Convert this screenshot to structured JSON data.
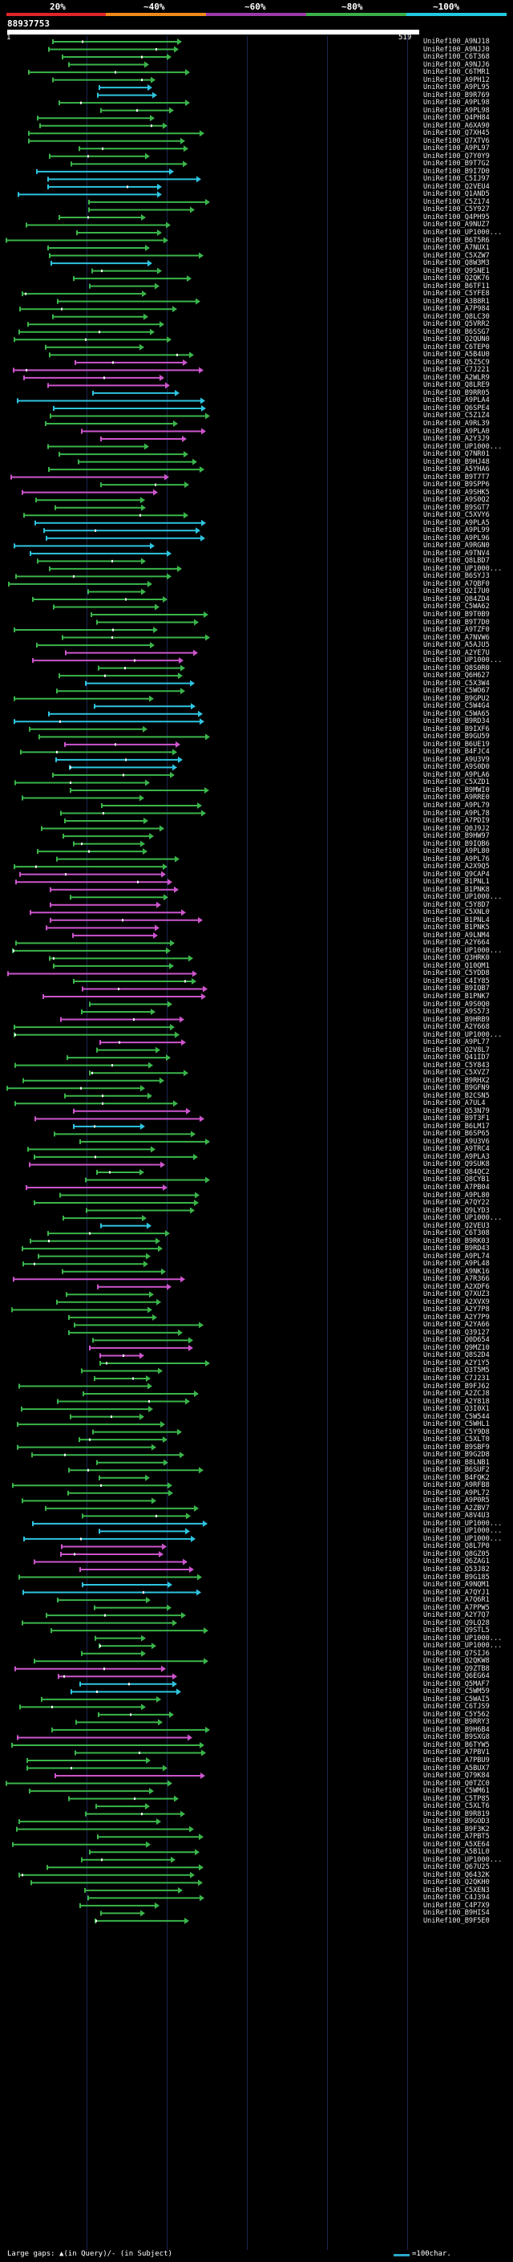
{
  "legend": {
    "labels": [
      "20%",
      "~40%",
      "~60%",
      "~80%",
      "~100%"
    ],
    "colors": [
      "#e0252c",
      "#f08a1a",
      "#9b3aa8",
      "#39b04a",
      "#22c8e0"
    ]
  },
  "query": {
    "id": "88937753",
    "start": "1",
    "end": "519"
  },
  "hits": [
    {
      "label": "UniRef100_A9NJ18",
      "color": "#3ab54a"
    },
    {
      "label": "UniRef100_A9NJJ0",
      "color": "#3ab54a"
    },
    {
      "label": "UniRef100_C6T368",
      "color": "#3ab54a"
    },
    {
      "label": "UniRef100_A9NJJ6",
      "color": "#3ab54a"
    },
    {
      "label": "UniRef100_C6TMR1",
      "color": "#3ab54a"
    },
    {
      "label": "UniRef100_A9PH12",
      "color": "#3ab54a"
    },
    {
      "label": "UniRef100_A9PL95",
      "color": "#2ec4e0"
    },
    {
      "label": "UniRef100_B9R769",
      "color": "#2ec4e0"
    },
    {
      "label": "UniRef100_A9PL98",
      "color": "#3ab54a"
    },
    {
      "label": "UniRef100_A9PL98",
      "color": "#3ab54a"
    },
    {
      "label": "UniRef100_Q4PH84",
      "color": "#3ab54a"
    },
    {
      "label": "UniRef100_A6XA90",
      "color": "#3ab54a"
    },
    {
      "label": "UniRef100_Q7XH45",
      "color": "#3ab54a"
    },
    {
      "label": "UniRef100_Q7XTV6",
      "color": "#3ab54a"
    },
    {
      "label": "UniRef100_A9PL97",
      "color": "#3ab54a"
    },
    {
      "label": "UniRef100_Q7Y0Y9",
      "color": "#3ab54a"
    },
    {
      "label": "UniRef100_B9T7G2",
      "color": "#3ab54a"
    },
    {
      "label": "UniRef100_B9I7D0",
      "color": "#2ec4e0"
    },
    {
      "label": "UniRef100_C5IJ97",
      "color": "#2ec4e0"
    },
    {
      "label": "UniRef100_Q2VEU4",
      "color": "#2ec4e0"
    },
    {
      "label": "UniRef100_Q1AND5",
      "color": "#2ec4e0"
    },
    {
      "label": "UniRef100_C5Z174",
      "color": "#3ab54a"
    },
    {
      "label": "UniRef100_C5Y927",
      "color": "#3ab54a"
    },
    {
      "label": "UniRef100_Q4PH95",
      "color": "#3ab54a"
    },
    {
      "label": "UniRef100_A9NUZ7",
      "color": "#3ab54a"
    },
    {
      "label": "UniRef100_UP1000...",
      "color": "#3ab54a"
    },
    {
      "label": "UniRef100_B6T5R6",
      "color": "#3ab54a"
    },
    {
      "label": "UniRef100_A7NUX1",
      "color": "#3ab54a"
    },
    {
      "label": "UniRef100_C5XZW7",
      "color": "#3ab54a"
    },
    {
      "label": "UniRef100_Q8W3M3",
      "color": "#2ec4e0"
    },
    {
      "label": "UniRef100_Q9SNE1",
      "color": "#3ab54a"
    },
    {
      "label": "UniRef100_Q2QK76",
      "color": "#3ab54a"
    },
    {
      "label": "UniRef100_B6TF11",
      "color": "#3ab54a"
    },
    {
      "label": "UniRef100_C5YFE8",
      "color": "#3ab54a"
    },
    {
      "label": "UniRef100_A3B8R1",
      "color": "#3ab54a"
    },
    {
      "label": "UniRef100_A7P984",
      "color": "#3ab54a"
    },
    {
      "label": "UniRef100_Q8LC30",
      "color": "#3ab54a"
    },
    {
      "label": "UniRef100_Q5VRR2",
      "color": "#3ab54a"
    },
    {
      "label": "UniRef100_B6SSG7",
      "color": "#3ab54a"
    },
    {
      "label": "UniRef100_Q2QUN0",
      "color": "#3ab54a"
    },
    {
      "label": "UniRef100_C6TEP0",
      "color": "#3ab54a"
    },
    {
      "label": "UniRef100_A5B4U0",
      "color": "#3ab54a"
    },
    {
      "label": "UniRef100_Q5Z5C9",
      "color": "#cc55cc"
    },
    {
      "label": "UniRef100_C7J221",
      "color": "#cc55cc"
    },
    {
      "label": "UniRef100_A2WLR9",
      "color": "#cc55cc"
    },
    {
      "label": "UniRef100_Q8LRE9",
      "color": "#cc55cc"
    },
    {
      "label": "UniRef100_B9RR05",
      "color": "#2ec4e0"
    },
    {
      "label": "UniRef100_A9PLA4",
      "color": "#2ec4e0"
    },
    {
      "label": "UniRef100_Q6SPE4",
      "color": "#2ec4e0"
    },
    {
      "label": "UniRef100_C5Z1Z4",
      "color": "#3ab54a"
    },
    {
      "label": "UniRef100_A9RL39",
      "color": "#3ab54a"
    },
    {
      "label": "UniRef100_A9PLA0",
      "color": "#cc55cc"
    },
    {
      "label": "UniRef100_A2Y3J9",
      "color": "#cc55cc"
    },
    {
      "label": "UniRef100_UP1000...",
      "color": "#3ab54a"
    },
    {
      "label": "UniRef100_Q7NR01",
      "color": "#3ab54a"
    },
    {
      "label": "UniRef100_B9HJ48",
      "color": "#3ab54a"
    },
    {
      "label": "UniRef100_A5YHA6",
      "color": "#3ab54a"
    },
    {
      "label": "UniRef100_B9T7T7",
      "color": "#cc55cc"
    },
    {
      "label": "UniRef100_B9SPP6",
      "color": "#3ab54a"
    },
    {
      "label": "UniRef100_A9SHK5",
      "color": "#cc55cc"
    },
    {
      "label": "UniRef100_A9S0Q2",
      "color": "#3ab54a"
    },
    {
      "label": "UniRef100_B9SGT7",
      "color": "#3ab54a"
    },
    {
      "label": "UniRef100_C5XVY6",
      "color": "#3ab54a"
    },
    {
      "label": "UniRef100_A9PLA5",
      "color": "#2ec4e0"
    },
    {
      "label": "UniRef100_A9PL99",
      "color": "#2ec4e0"
    },
    {
      "label": "UniRef100_A9PL96",
      "color": "#2ec4e0"
    },
    {
      "label": "UniRef100_A9RGN0",
      "color": "#2ec4e0"
    },
    {
      "label": "UniRef100_A9TNV4",
      "color": "#2ec4e0"
    },
    {
      "label": "UniRef100_Q8LBD7",
      "color": "#3ab54a"
    },
    {
      "label": "UniRef100_UP1000...",
      "color": "#3ab54a"
    },
    {
      "label": "UniRef100_B6SYJ3",
      "color": "#3ab54a"
    },
    {
      "label": "UniRef100_A7QBF0",
      "color": "#3ab54a"
    },
    {
      "label": "UniRef100_Q2I7U0",
      "color": "#3ab54a"
    },
    {
      "label": "UniRef100_Q84ZD4",
      "color": "#3ab54a"
    },
    {
      "label": "UniRef100_C5WA62",
      "color": "#3ab54a"
    },
    {
      "label": "UniRef100_B9T0B9",
      "color": "#3ab54a"
    },
    {
      "label": "UniRef100_B9T7D0",
      "color": "#3ab54a"
    },
    {
      "label": "UniRef100_A9TZF0",
      "color": "#3ab54a"
    },
    {
      "label": "UniRef100_A7NVW6",
      "color": "#3ab54a"
    },
    {
      "label": "UniRef100_A5AJU5",
      "color": "#3ab54a"
    },
    {
      "label": "UniRef100_A2YE7U",
      "color": "#cc55cc"
    },
    {
      "label": "UniRef100_UP1000...",
      "color": "#cc55cc"
    },
    {
      "label": "UniRef100_Q8S0R0",
      "color": "#3ab54a"
    },
    {
      "label": "UniRef100_Q6H627",
      "color": "#3ab54a"
    },
    {
      "label": "UniRef100_C5X3W4",
      "color": "#2ec4e0"
    },
    {
      "label": "UniRef100_C5WO67",
      "color": "#3ab54a"
    },
    {
      "label": "UniRef100_B9GPU2",
      "color": "#3ab54a"
    },
    {
      "label": "UniRef100_C5W4G4",
      "color": "#2ec4e0"
    },
    {
      "label": "UniRef100_C5WA65",
      "color": "#2ec4e0"
    },
    {
      "label": "UniRef100_B9RD34",
      "color": "#2ec4e0"
    },
    {
      "label": "UniRef100_B9IXF6",
      "color": "#3ab54a"
    },
    {
      "label": "UniRef100_B9GU59",
      "color": "#3ab54a"
    },
    {
      "label": "UniRef100_B6UE19",
      "color": "#cc55cc"
    },
    {
      "label": "UniRef100_B4FJC4",
      "color": "#3ab54a"
    },
    {
      "label": "UniRef100_A9U3V9",
      "color": "#2ec4e0"
    },
    {
      "label": "UniRef100_A9S0D0",
      "color": "#2ec4e0"
    },
    {
      "label": "UniRef100_A9PLA6",
      "color": "#3ab54a"
    },
    {
      "label": "UniRef100_C5XZD1",
      "color": "#3ab54a"
    },
    {
      "label": "UniRef100_B9MWI0",
      "color": "#3ab54a"
    },
    {
      "label": "UniRef100_A9RRE0",
      "color": "#3ab54a"
    },
    {
      "label": "UniRef100_A9PL79",
      "color": "#3ab54a"
    },
    {
      "label": "UniRef100_A9PL78",
      "color": "#3ab54a"
    },
    {
      "label": "UniRef100_A7PDI9",
      "color": "#3ab54a"
    },
    {
      "label": "UniRef100_Q0J9J2",
      "color": "#3ab54a"
    },
    {
      "label": "UniRef100_B9HW97",
      "color": "#3ab54a"
    },
    {
      "label": "UniRef100_B9IQB6",
      "color": "#3ab54a"
    },
    {
      "label": "UniRef100_A9PL80",
      "color": "#3ab54a"
    },
    {
      "label": "UniRef100_A9PL76",
      "color": "#3ab54a"
    },
    {
      "label": "UniRef100_A2X9Q5",
      "color": "#3ab54a"
    },
    {
      "label": "UniRef100_Q9CAP4",
      "color": "#cc55cc"
    },
    {
      "label": "UniRef100_B1PNL1",
      "color": "#cc55cc"
    },
    {
      "label": "UniRef100_B1PNK8",
      "color": "#cc55cc"
    },
    {
      "label": "UniRef100_UP1000...",
      "color": "#3ab54a"
    },
    {
      "label": "UniRef100_C5Y8D7",
      "color": "#cc55cc"
    },
    {
      "label": "UniRef100_C5XNL0",
      "color": "#cc55cc"
    },
    {
      "label": "UniRef100_B1PNL4",
      "color": "#cc55cc"
    },
    {
      "label": "UniRef100_B1PNK5",
      "color": "#cc55cc"
    },
    {
      "label": "UniRef100_A9LNM4",
      "color": "#cc55cc"
    },
    {
      "label": "UniRef100_A2Y664",
      "color": "#3ab54a"
    },
    {
      "label": "UniRef100_UP1000...",
      "color": "#3ab54a"
    },
    {
      "label": "UniRef100_Q3HRK0",
      "color": "#3ab54a"
    },
    {
      "label": "UniRef100_Q10QM1",
      "color": "#3ab54a"
    },
    {
      "label": "UniRef100_C5YDD8",
      "color": "#cc55cc"
    },
    {
      "label": "UniRef100_C4IY85",
      "color": "#3ab54a"
    },
    {
      "label": "UniRef100_B9IQB7",
      "color": "#cc55cc"
    },
    {
      "label": "UniRef100_B1PNK7",
      "color": "#cc55cc"
    },
    {
      "label": "UniRef100_A9S0Q0",
      "color": "#3ab54a"
    },
    {
      "label": "UniRef100_A9S573",
      "color": "#3ab54a"
    },
    {
      "label": "UniRef100_B9HRB9",
      "color": "#cc55cc"
    },
    {
      "label": "UniRef100_A2Y668",
      "color": "#3ab54a"
    },
    {
      "label": "UniRef100_UP1000...",
      "color": "#3ab54a"
    },
    {
      "label": "UniRef100_A9PL77",
      "color": "#cc55cc"
    },
    {
      "label": "UniRef100_Q2V8L7",
      "color": "#3ab54a"
    },
    {
      "label": "UniRef100_Q41ID7",
      "color": "#3ab54a"
    },
    {
      "label": "UniRef100_C5Y843",
      "color": "#3ab54a"
    },
    {
      "label": "UniRef100_C5XVZ7",
      "color": "#3ab54a"
    },
    {
      "label": "UniRef100_B9RHX2",
      "color": "#3ab54a"
    },
    {
      "label": "UniRef100_B9GFN9",
      "color": "#3ab54a"
    },
    {
      "label": "UniRef100_B2CSN5",
      "color": "#3ab54a"
    },
    {
      "label": "UniRef100_A7UL4",
      "color": "#3ab54a"
    },
    {
      "label": "UniRef100_Q53N79",
      "color": "#cc55cc"
    },
    {
      "label": "UniRef100_B9T3F1",
      "color": "#cc55cc"
    },
    {
      "label": "UniRef100_B6LM17",
      "color": "#2ec4e0"
    },
    {
      "label": "UniRef100_B6SP65",
      "color": "#3ab54a"
    },
    {
      "label": "UniRef100_A9U3V6",
      "color": "#3ab54a"
    },
    {
      "label": "UniRef100_A9TRC4",
      "color": "#3ab54a"
    },
    {
      "label": "UniRef100_A9PLA3",
      "color": "#3ab54a"
    },
    {
      "label": "UniRef100_Q9SUK8",
      "color": "#cc55cc"
    },
    {
      "label": "UniRef100_Q84QC2",
      "color": "#3ab54a"
    },
    {
      "label": "UniRef100_Q8CYB1",
      "color": "#3ab54a"
    },
    {
      "label": "UniRef100_A7PB04",
      "color": "#cc55cc"
    },
    {
      "label": "UniRef100_A9PL80",
      "color": "#3ab54a"
    },
    {
      "label": "UniRef100_A7QY22",
      "color": "#3ab54a"
    },
    {
      "label": "UniRef100_Q9LYD3",
      "color": "#3ab54a"
    },
    {
      "label": "UniRef100_UP1000...",
      "color": "#3ab54a"
    },
    {
      "label": "UniRef100_Q2VEU3",
      "color": "#2ec4e0"
    },
    {
      "label": "UniRef100_C6T308",
      "color": "#3ab54a"
    },
    {
      "label": "UniRef100_B9RK03",
      "color": "#3ab54a"
    },
    {
      "label": "UniRef100_B9RD43",
      "color": "#3ab54a"
    },
    {
      "label": "UniRef100_A9PL74",
      "color": "#3ab54a"
    },
    {
      "label": "UniRef100_A9PL48",
      "color": "#3ab54a"
    },
    {
      "label": "UniRef100_A9NK16",
      "color": "#3ab54a"
    },
    {
      "label": "UniRef100_A7R366",
      "color": "#cc55cc"
    },
    {
      "label": "UniRef100_A2XDF6",
      "color": "#cc55cc"
    },
    {
      "label": "UniRef100_Q7XUZ3",
      "color": "#3ab54a"
    },
    {
      "label": "UniRef100_A2XVX9",
      "color": "#3ab54a"
    },
    {
      "label": "UniRef100_A2Y7P8",
      "color": "#3ab54a"
    },
    {
      "label": "UniRef100_A2Y7P9",
      "color": "#3ab54a"
    },
    {
      "label": "UniRef100_A2YA66",
      "color": "#3ab54a"
    },
    {
      "label": "UniRef100_Q39127",
      "color": "#3ab54a"
    },
    {
      "label": "UniRef100_Q0D654",
      "color": "#3ab54a"
    },
    {
      "label": "UniRef100_Q9MZ10",
      "color": "#cc55cc"
    },
    {
      "label": "UniRef100_Q8S2D4",
      "color": "#cc55cc"
    },
    {
      "label": "UniRef100_A2Y1Y5",
      "color": "#3ab54a"
    },
    {
      "label": "UniRef100_Q3T5M5",
      "color": "#3ab54a"
    },
    {
      "label": "UniRef100_C7J231",
      "color": "#3ab54a"
    },
    {
      "label": "UniRef100_B9FJ62",
      "color": "#3ab54a"
    },
    {
      "label": "UniRef100_A2ZCJ8",
      "color": "#3ab54a"
    },
    {
      "label": "UniRef100_A2Y818",
      "color": "#3ab54a"
    },
    {
      "label": "UniRef100_Q3I0X1",
      "color": "#3ab54a"
    },
    {
      "label": "UniRef100_C5W544",
      "color": "#3ab54a"
    },
    {
      "label": "UniRef100_C5WHL1",
      "color": "#3ab54a"
    },
    {
      "label": "UniRef100_C5Y9D8",
      "color": "#3ab54a"
    },
    {
      "label": "UniRef100_C5XLT0",
      "color": "#3ab54a"
    },
    {
      "label": "UniRef100_B9SBF9",
      "color": "#3ab54a"
    },
    {
      "label": "UniRef100_B9G2D8",
      "color": "#3ab54a"
    },
    {
      "label": "UniRef100_B8LNB1",
      "color": "#3ab54a"
    },
    {
      "label": "UniRef100_B6SUF2",
      "color": "#3ab54a"
    },
    {
      "label": "UniRef100_B4FQK2",
      "color": "#3ab54a"
    },
    {
      "label": "UniRef100_A9RFB8",
      "color": "#3ab54a"
    },
    {
      "label": "UniRef100_A9PL72",
      "color": "#3ab54a"
    },
    {
      "label": "UniRef100_A9P0R5",
      "color": "#3ab54a"
    },
    {
      "label": "UniRef100_A2ZBV7",
      "color": "#3ab54a"
    },
    {
      "label": "UniRef100_A8V4U3",
      "color": "#3ab54a"
    },
    {
      "label": "UniRef100_UP1000...",
      "color": "#2ec4e0"
    },
    {
      "label": "UniRef100_UP1000...",
      "color": "#2ec4e0"
    },
    {
      "label": "UniRef100_UP1000...",
      "color": "#2ec4e0"
    },
    {
      "label": "UniRef100_Q8L7P0",
      "color": "#cc55cc"
    },
    {
      "label": "UniRef100_Q8GZ05",
      "color": "#cc55cc"
    },
    {
      "label": "UniRef100_Q6ZAG1",
      "color": "#cc55cc"
    },
    {
      "label": "UniRef100_Q53J82",
      "color": "#cc55cc"
    },
    {
      "label": "UniRef100_B9G185",
      "color": "#3ab54a"
    },
    {
      "label": "UniRef100_A9NQM1",
      "color": "#2ec4e0"
    },
    {
      "label": "UniRef100_A7QYJ1",
      "color": "#2ec4e0"
    },
    {
      "label": "UniRef100_A7Q6R1",
      "color": "#3ab54a"
    },
    {
      "label": "UniRef100_A7PPW5",
      "color": "#3ab54a"
    },
    {
      "label": "UniRef100_A2Y7Q7",
      "color": "#3ab54a"
    },
    {
      "label": "UniRef100_Q9LQ28",
      "color": "#3ab54a"
    },
    {
      "label": "UniRef100_Q9STL5",
      "color": "#3ab54a"
    },
    {
      "label": "UniRef100_UP1000...",
      "color": "#3ab54a"
    },
    {
      "label": "UniRef100_UP1000...",
      "color": "#3ab54a"
    },
    {
      "label": "UniRef100_Q7SIJ6",
      "color": "#3ab54a"
    },
    {
      "label": "UniRef100_Q2QKW8",
      "color": "#3ab54a"
    },
    {
      "label": "UniRef100_Q9ZTB8",
      "color": "#cc55cc"
    },
    {
      "label": "UniRef100_Q6EG64",
      "color": "#cc55cc"
    },
    {
      "label": "UniRef100_Q5MAF7",
      "color": "#2ec4e0"
    },
    {
      "label": "UniRef100_C5WM59",
      "color": "#2ec4e0"
    },
    {
      "label": "UniRef100_C5WAI5",
      "color": "#3ab54a"
    },
    {
      "label": "UniRef100_C6TJS9",
      "color": "#3ab54a"
    },
    {
      "label": "UniRef100_C5Y562",
      "color": "#3ab54a"
    },
    {
      "label": "UniRef100_B9RRY3",
      "color": "#3ab54a"
    },
    {
      "label": "UniRef100_B9H6B4",
      "color": "#3ab54a"
    },
    {
      "label": "UniRef100_B9SXG8",
      "color": "#cc55cc"
    },
    {
      "label": "UniRef100_B6TYW5",
      "color": "#3ab54a"
    },
    {
      "label": "UniRef100_A7PBV1",
      "color": "#3ab54a"
    },
    {
      "label": "UniRef100_A7PBU9",
      "color": "#3ab54a"
    },
    {
      "label": "UniRef100_A5BUX7",
      "color": "#3ab54a"
    },
    {
      "label": "UniRef100_Q79K84",
      "color": "#cc55cc"
    },
    {
      "label": "UniRef100_Q0TZC0",
      "color": "#3ab54a"
    },
    {
      "label": "UniRef100_C5WM61",
      "color": "#3ab54a"
    },
    {
      "label": "UniRef100_C5TP85",
      "color": "#3ab54a"
    },
    {
      "label": "UniRef100_C5XLT6",
      "color": "#3ab54a"
    },
    {
      "label": "UniRef100_B9R819",
      "color": "#3ab54a"
    },
    {
      "label": "UniRef100_B9GOD3",
      "color": "#3ab54a"
    },
    {
      "label": "UniRef100_B9F3K2",
      "color": "#3ab54a"
    },
    {
      "label": "UniRef100_A7PBT5",
      "color": "#3ab54a"
    },
    {
      "label": "UniRef100_A5XE64",
      "color": "#3ab54a"
    },
    {
      "label": "UniRef100_A5B1L0",
      "color": "#3ab54a"
    },
    {
      "label": "UniRef100_UP1000...",
      "color": "#3ab54a"
    },
    {
      "label": "UniRef100_Q67U25",
      "color": "#3ab54a"
    },
    {
      "label": "UniRef100_Q6432K",
      "color": "#3ab54a"
    },
    {
      "label": "UniRef100_Q2QKH0",
      "color": "#3ab54a"
    },
    {
      "label": "UniRef100_C5XEN3",
      "color": "#3ab54a"
    },
    {
      "label": "UniRef100_C4J394",
      "color": "#3ab54a"
    },
    {
      "label": "UniRef100_C4P7X9",
      "color": "#3ab54a"
    },
    {
      "label": "UniRef100_B9HIS4",
      "color": "#3ab54a"
    },
    {
      "label": "UniRef100_B9F5E0",
      "color": "#3ab54a"
    }
  ],
  "footer": {
    "large_gaps": "Large gaps: ▲(in Query)/- (in Subject)",
    "scale": "=100char."
  }
}
